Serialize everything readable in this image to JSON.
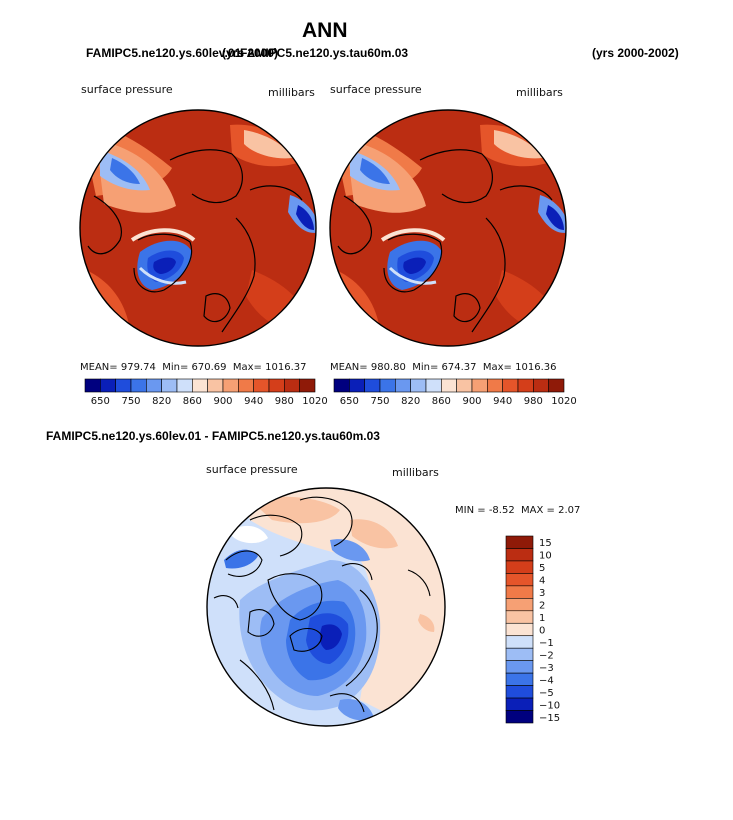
{
  "page": {
    "title": "ANN",
    "header_left_1": "FAMIPC5.ne120.ys.60lev.01",
    "header_left_2": "FAMIPC5.ne120.ys.tau60m.03",
    "header_left_years": "(yrs 2000)",
    "header_right_years": "(yrs 2000-2002)",
    "diff_title": "FAMIPC5.ne120.ys.60lev.01 - FAMIPC5.ne120.ys.tau60m.03"
  },
  "chart_data": [
    {
      "type": "heatmap",
      "projection": "north polar stereographic",
      "variable": "surface pressure",
      "units": "millibars",
      "stats": {
        "mean_label": "MEAN=",
        "mean": "979.74",
        "min_label": "Min=",
        "min": "670.69",
        "max_label": "Max=",
        "max": "1016.37"
      },
      "colorbar_levels": [
        "650",
        "750",
        "820",
        "860",
        "900",
        "940",
        "980",
        "1020"
      ],
      "colorbar_colors": [
        "#00007f",
        "#0a1fb8",
        "#1f4ddc",
        "#3b74e8",
        "#6a98f0",
        "#9dbdf5",
        "#cfe0fa",
        "#fbe3d3",
        "#f9c3a3",
        "#f6a074",
        "#f07a48",
        "#e5552a",
        "#d43e1a",
        "#bb2d12",
        "#8f1a08"
      ]
    },
    {
      "type": "heatmap",
      "projection": "north polar stereographic",
      "variable": "surface pressure",
      "units": "millibars",
      "stats": {
        "mean_label": "MEAN=",
        "mean": "980.80",
        "min_label": "Min=",
        "min": "674.37",
        "max_label": "Max=",
        "max": "1016.36"
      },
      "colorbar_levels": [
        "650",
        "750",
        "820",
        "860",
        "900",
        "940",
        "980",
        "1020"
      ],
      "colorbar_colors": [
        "#00007f",
        "#0a1fb8",
        "#1f4ddc",
        "#3b74e8",
        "#6a98f0",
        "#9dbdf5",
        "#cfe0fa",
        "#fbe3d3",
        "#f9c3a3",
        "#f6a074",
        "#f07a48",
        "#e5552a",
        "#d43e1a",
        "#bb2d12",
        "#8f1a08"
      ]
    },
    {
      "type": "heatmap",
      "projection": "north polar stereographic",
      "variable": "surface pressure",
      "units": "millibars",
      "stats": {
        "min_label": "MIN =",
        "min": "-8.52",
        "max_label": "MAX =",
        "max": "2.07"
      },
      "colorbar_levels": [
        "15",
        "10",
        "5",
        "4",
        "3",
        "2",
        "1",
        "0",
        "−1",
        "−2",
        "−3",
        "−4",
        "−5",
        "−10",
        "−15"
      ],
      "colorbar_colors": [
        "#8f1a08",
        "#bb2d12",
        "#d43e1a",
        "#e5552a",
        "#f07a48",
        "#f6a074",
        "#f9c3a3",
        "#fbe3d3",
        "#cfe0fa",
        "#9dbdf5",
        "#6a98f0",
        "#3b74e8",
        "#1f4ddc",
        "#0a1fb8",
        "#00007f"
      ]
    }
  ]
}
